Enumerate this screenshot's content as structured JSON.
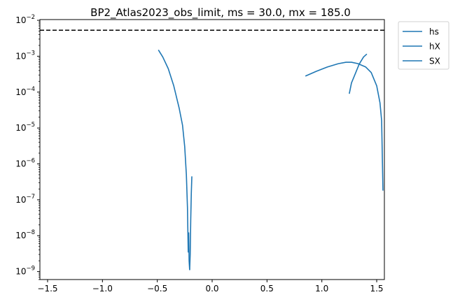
{
  "chart_data": {
    "type": "line",
    "title": "BP2_Atlas2023_obs_limit, ms = 30.0, mx = 185.0",
    "xlabel": "",
    "ylabel": "",
    "xlim": [
      -1.57,
      1.57
    ],
    "ylim": [
      6e-10,
      0.0105
    ],
    "yscale": "log",
    "grid": false,
    "legend_placement": "outside-top-right",
    "x_ticks": [
      {
        "value": -1.5,
        "label": "−1.5"
      },
      {
        "value": -1.0,
        "label": "−1.0"
      },
      {
        "value": -0.5,
        "label": "−0.5"
      },
      {
        "value": 0.0,
        "label": "0.0"
      },
      {
        "value": 0.5,
        "label": "0.5"
      },
      {
        "value": 1.0,
        "label": "1.0"
      },
      {
        "value": 1.5,
        "label": "1.5"
      }
    ],
    "y_ticks": [
      {
        "exp": -9,
        "base": "10",
        "sup": "−9"
      },
      {
        "exp": -8,
        "base": "10",
        "sup": "−8"
      },
      {
        "exp": -7,
        "base": "10",
        "sup": "−7"
      },
      {
        "exp": -6,
        "base": "10",
        "sup": "−6"
      },
      {
        "exp": -5,
        "base": "10",
        "sup": "−5"
      },
      {
        "exp": -4,
        "base": "10",
        "sup": "−4"
      },
      {
        "exp": -3,
        "base": "10",
        "sup": "−3"
      },
      {
        "exp": -2,
        "base": "10",
        "sup": "−2"
      }
    ],
    "reference_line": {
      "y": 0.0053,
      "style": "dashed",
      "color": "#000000"
    },
    "series": [
      {
        "name": "hs",
        "color": "#1f77b4",
        "points": [
          [
            -0.49,
            0.0015
          ],
          [
            -0.45,
            0.00095
          ],
          [
            -0.4,
            0.00045
          ],
          [
            -0.35,
            0.00015
          ],
          [
            -0.3,
            3.5e-05
          ],
          [
            -0.27,
            1.2e-05
          ],
          [
            -0.25,
            3e-06
          ],
          [
            -0.235,
            5e-07
          ],
          [
            -0.225,
            6e-08
          ],
          [
            -0.218,
            3.5e-09
          ],
          [
            -0.214,
            1.2e-08
          ],
          [
            -0.21,
            2e-09
          ],
          [
            -0.205,
            1.1e-09
          ]
        ]
      },
      {
        "name": "hX",
        "color": "#1f77b4",
        "points": [
          [
            -0.205,
            1.1e-09
          ],
          [
            -0.2,
            3e-09
          ],
          [
            -0.195,
            3e-08
          ],
          [
            -0.19,
            1.5e-07
          ],
          [
            -0.185,
            4.5e-07
          ]
        ]
      },
      {
        "name": "SX",
        "color": "#1f77b4",
        "points": [
          [
            0.85,
            0.00028
          ],
          [
            0.95,
            0.00038
          ],
          [
            1.05,
            0.0005
          ],
          [
            1.15,
            0.00062
          ],
          [
            1.22,
            0.00068
          ],
          [
            1.27,
            0.00068
          ],
          [
            1.33,
            0.00062
          ],
          [
            1.4,
            0.0005
          ],
          [
            1.45,
            0.00035
          ],
          [
            1.5,
            0.00015
          ],
          [
            1.53,
            5e-05
          ],
          [
            1.545,
            1.6e-05
          ],
          [
            1.557,
            1.8e-07
          ]
        ]
      },
      {
        "name": "",
        "color": "#1f77b4",
        "points": [
          [
            1.25,
            9e-05
          ],
          [
            1.27,
            0.00018
          ],
          [
            1.3,
            0.0003
          ],
          [
            1.34,
            0.0006
          ],
          [
            1.38,
            0.00095
          ],
          [
            1.41,
            0.00115
          ]
        ]
      }
    ],
    "legend": [
      "hs",
      "hX",
      "SX"
    ]
  }
}
